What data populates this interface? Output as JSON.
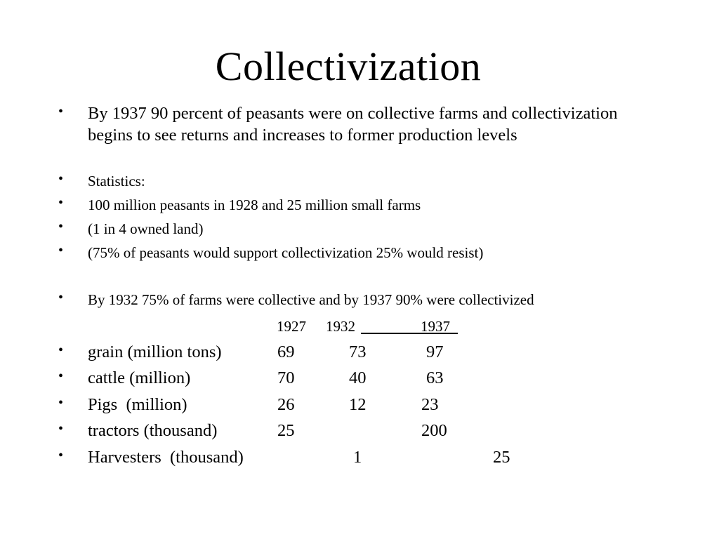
{
  "slide": {
    "title": "Collectivization",
    "bullets": [
      "By 1937 90 percent of peasants were on collective farms and collectivization begins to see returns and increases to former production levels",
      "Statistics:",
      "100 million peasants in 1928 and 25 million small farms",
      "(1 in 4 owned land)",
      "(75% of peasants would support collectivization 25% would resist)",
      "By 1932 75% of farms were collective and by 1937 90% were collectivized"
    ],
    "bullet_glyph": "•",
    "table": {
      "years": [
        "1927",
        "1932",
        "1937"
      ],
      "rows": [
        {
          "label": "grain (million tons)",
          "v1927": "69",
          "v1932": "73",
          "v1937": "97"
        },
        {
          "label": "cattle (million)",
          "v1927": "70",
          "v1932": "40",
          "v1937": "63"
        },
        {
          "label": "Pigs  (million)",
          "v1927": "26",
          "v1932": "12",
          "v1937": "23"
        },
        {
          "label": "tractors (thousand)",
          "v1927": "25",
          "v1932": "",
          "v1937": "200"
        },
        {
          "label": "Harvesters  (thousand)",
          "v1927": "",
          "v1932": "1",
          "v1937": "25"
        }
      ]
    }
  }
}
